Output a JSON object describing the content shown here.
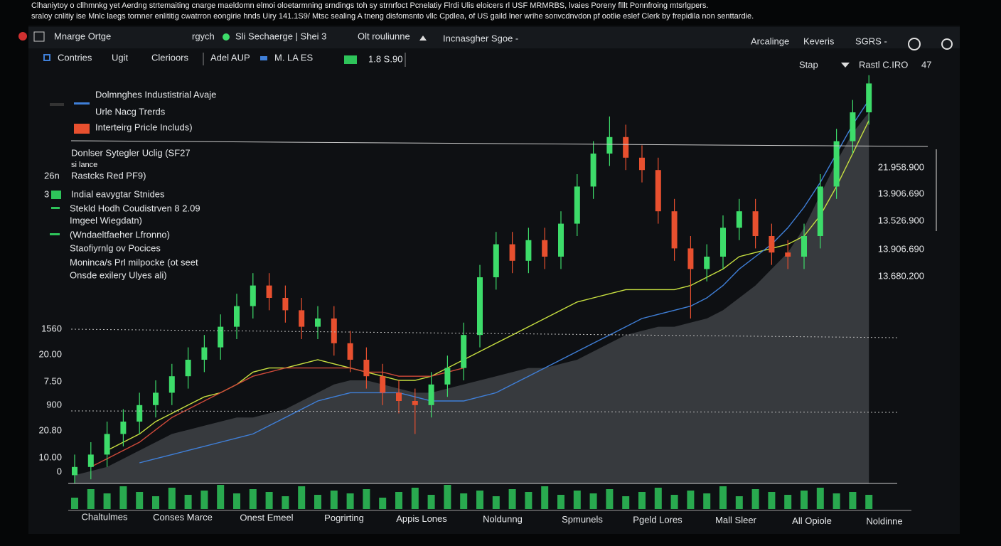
{
  "header": {
    "caption_lines": [
      "Clhaniytoy o cllhmnkg yet Aerdng strtemaiting cnarge maeldomn elmoi oloetarmning srndings toh sy strnrfoct Pcnelatiy Flrdi Ulis eloicers rl USF MRMRBS, lvaies Poreny flllt Ponnfroing mtsrlgpers.",
      "sraloy cnlitiy ise Mnlc laegs tornner enlititig cwatrron eongirie hnds Uiry  141.1S9/ Mtsc sealing A tneng disfomsnto vllc Cpdlea, of US  gaild lner wrihe sonvcdnvdon pf ootlie eslef  Clerk by frepidila non senttardie."
    ]
  },
  "toolbar": {
    "items": [
      "Mnarge Ortge",
      "rgych",
      "Sli Sechaerge | Shei 3",
      "Olt rouliunne",
      "Incnasgher Sgoe -",
      "Arcalinge",
      "Keveris",
      "SGRS -"
    ]
  },
  "subbar": {
    "items": [
      "Contries",
      "Ugit",
      "Clerioors",
      "Adel AUP",
      "M. LA ES",
      "1.8 S.90",
      "Stap",
      "Rastl C.IRO",
      "47"
    ]
  },
  "legend": {
    "items": [
      {
        "label": "Dolmnghes Industistrial Avaje",
        "color": "#3f7fd8"
      },
      {
        "label": "Urle Nacg Trerds",
        "color": null
      },
      {
        "label": "Interteirg Pricle Includs)",
        "color": "#e8502f"
      }
    ]
  },
  "notes": {
    "lines": [
      "Donlser Sytegler Uclig (SF27",
      "si lance",
      "Rastcks Red PF9)",
      "Indial eavygtar Stnides",
      "Stekld Hodh Coudistrven 8 2.09",
      "Imgeel Wiegdatn)",
      "(Wndaeltfaeher Lfronno)",
      "Staofiyrnlg ov Pocices",
      "Moninca/s Prl milpocke (ot seet",
      "Onsde exilery Ulyes ali)"
    ],
    "side_labels": [
      "26n",
      "3"
    ]
  },
  "left_labels": [
    "1560",
    "20.00",
    "7.50",
    "900",
    "20.80",
    "10.00",
    "0"
  ],
  "right_labels": [
    "21.958.900",
    "13.906.690",
    "13.526.900",
    "13.906.690",
    "13.680.200"
  ],
  "x_labels": [
    "Chaltulmes",
    "Conses Marce",
    "Onest Emeel",
    "Pogrirting",
    "Appis Lones",
    "Noldunng",
    "Spmunels",
    "Pgeld Lores",
    "Mall Sleer",
    "All Opiole",
    "Noldinne"
  ],
  "chart_data": {
    "type": "candlestick",
    "up_color": "#3ddc6a",
    "down_color": "#e8502f",
    "open": [
      2,
      4,
      7,
      12,
      15,
      19,
      22,
      26,
      30,
      33,
      38,
      43,
      48,
      45,
      42,
      38,
      40,
      34,
      30,
      26,
      22,
      20,
      19,
      24,
      28,
      36,
      50,
      58,
      54,
      59,
      55,
      63,
      72,
      80,
      84,
      79,
      76,
      66,
      57,
      52,
      55,
      62,
      66,
      60,
      56,
      55,
      60,
      72,
      83,
      90
    ],
    "high": [
      7,
      10,
      15,
      18,
      22,
      25,
      29,
      33,
      36,
      41,
      46,
      51,
      51,
      48,
      45,
      43,
      43,
      37,
      33,
      29,
      25,
      23,
      27,
      31,
      39,
      53,
      61,
      61,
      62,
      62,
      66,
      75,
      83,
      89,
      87,
      82,
      79,
      69,
      60,
      58,
      65,
      69,
      69,
      63,
      59,
      63,
      75,
      86,
      93,
      99
    ],
    "low": [
      0,
      1,
      4,
      9,
      12,
      16,
      19,
      23,
      27,
      30,
      35,
      40,
      42,
      39,
      35,
      35,
      31,
      27,
      23,
      19,
      17,
      12,
      16,
      21,
      25,
      33,
      47,
      51,
      51,
      52,
      52,
      60,
      69,
      77,
      76,
      73,
      63,
      54,
      40,
      49,
      52,
      59,
      57,
      53,
      52,
      52,
      57,
      69,
      80,
      87
    ],
    "close": [
      4,
      7,
      12,
      15,
      19,
      22,
      26,
      30,
      33,
      38,
      43,
      48,
      45,
      42,
      38,
      40,
      34,
      30,
      26,
      22,
      20,
      19,
      24,
      28,
      36,
      50,
      58,
      54,
      59,
      55,
      63,
      72,
      80,
      84,
      79,
      76,
      66,
      57,
      52,
      55,
      62,
      66,
      60,
      56,
      55,
      60,
      72,
      83,
      90,
      97
    ],
    "lines": [
      {
        "color": "#c8e040",
        "values": [
          null,
          null,
          8,
          10,
          12,
          15,
          17,
          19,
          21,
          22,
          24,
          27,
          28,
          28,
          29,
          30,
          29,
          28,
          27,
          26,
          25,
          25,
          26,
          28,
          30,
          32,
          34,
          36,
          38,
          40,
          42,
          44,
          45,
          46,
          47,
          47,
          47,
          47,
          48,
          50,
          52,
          55,
          56,
          57,
          58,
          60,
          65,
          72,
          80,
          88
        ]
      },
      {
        "color": "#3f7fd8",
        "values": [
          null,
          null,
          null,
          null,
          5,
          6,
          7,
          8,
          9,
          10,
          11,
          12,
          14,
          16,
          18,
          20,
          21,
          22,
          22,
          22,
          22,
          21,
          20,
          20,
          20,
          21,
          22,
          24,
          26,
          28,
          30,
          32,
          34,
          36,
          38,
          40,
          41,
          42,
          43,
          45,
          48,
          52,
          55,
          58,
          62,
          67,
          73,
          80,
          87,
          93
        ]
      },
      {
        "color": "#d04a3a",
        "values": [
          null,
          4,
          6,
          8,
          10,
          13,
          16,
          18,
          20,
          22,
          24,
          26,
          27,
          28,
          28,
          28,
          28,
          28,
          27,
          27,
          26,
          26,
          26,
          27,
          28,
          null,
          null,
          null,
          null,
          null,
          null,
          null,
          null,
          null,
          null,
          null,
          null,
          null,
          null,
          null,
          null,
          null,
          null,
          null,
          null,
          null,
          null,
          null,
          null,
          null
        ]
      }
    ],
    "area": {
      "color": "#5a5d62",
      "values": [
        2,
        3,
        4,
        6,
        8,
        10,
        12,
        13,
        14,
        15,
        16,
        16,
        17,
        18,
        20,
        22,
        24,
        25,
        25,
        24,
        23,
        22,
        22,
        23,
        24,
        25,
        26,
        27,
        28,
        28,
        29,
        30,
        32,
        34,
        36,
        37,
        38,
        38,
        39,
        40,
        42,
        45,
        48,
        52,
        56,
        62,
        70,
        78,
        85,
        90
      ]
    },
    "volume": {
      "color": "#2ec45a",
      "values": [
        40,
        70,
        55,
        80,
        60,
        45,
        75,
        50,
        65,
        85,
        55,
        70,
        60,
        45,
        80,
        50,
        65,
        55,
        70,
        40,
        60,
        75,
        50,
        85,
        55,
        65,
        45,
        70,
        60,
        80,
        50,
        65,
        55,
        70,
        45,
        60,
        75,
        50,
        65,
        55,
        80,
        45,
        70,
        60,
        50,
        65,
        75,
        55,
        60,
        50
      ]
    }
  }
}
